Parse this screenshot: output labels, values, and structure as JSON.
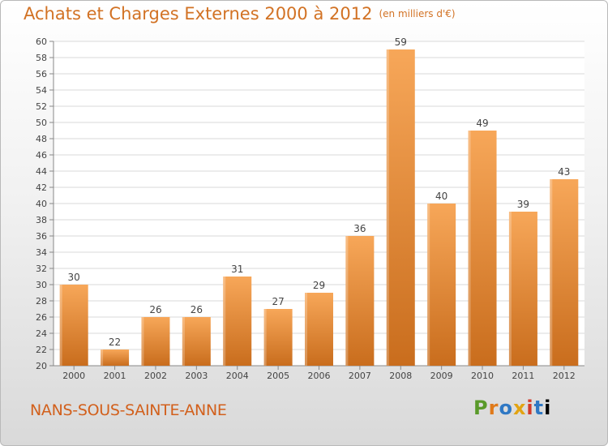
{
  "title": "Achats et Charges Externes 2000 à 2012",
  "subtitle": "(en milliers d'€)",
  "commune": "NANS-SOUS-SAINTE-ANNE",
  "logo_text": "Proxiti",
  "colors": {
    "title": "#d27224",
    "bar_light": "#f7a759",
    "bar_dark": "#c96d1d",
    "commune": "#d2601c"
  },
  "chart_data": {
    "type": "bar",
    "categories": [
      "2000",
      "2001",
      "2002",
      "2003",
      "2004",
      "2005",
      "2006",
      "2007",
      "2008",
      "2009",
      "2010",
      "2011",
      "2012"
    ],
    "values": [
      30,
      22,
      26,
      26,
      31,
      27,
      29,
      36,
      59,
      40,
      49,
      39,
      43
    ],
    "title": "Achats et Charges Externes 2000 à 2012",
    "subtitle": "(en milliers d'€)",
    "ylim": [
      20,
      60
    ],
    "yticks": [
      20,
      22,
      24,
      26,
      28,
      30,
      32,
      34,
      36,
      38,
      40,
      42,
      44,
      46,
      48,
      50,
      52,
      54,
      56,
      58,
      60
    ],
    "grid": true,
    "data_labels": true
  }
}
